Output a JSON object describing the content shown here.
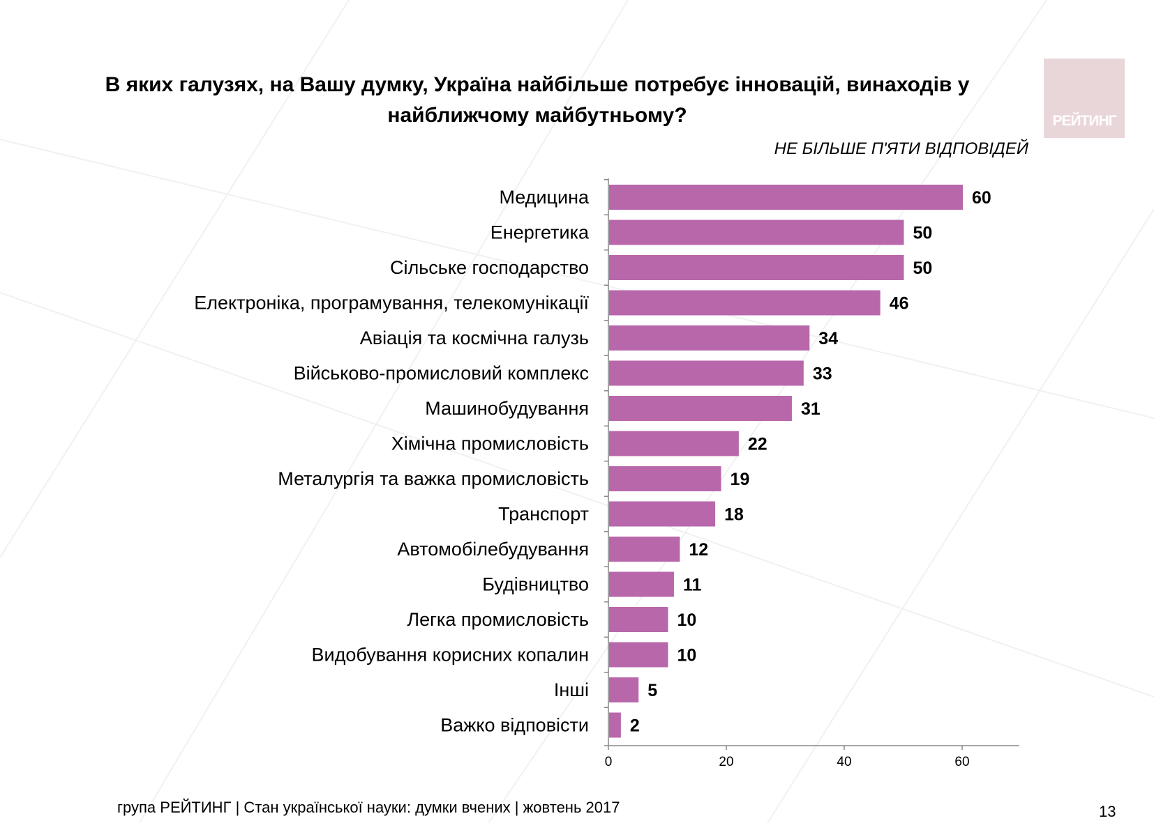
{
  "title_line1": "В яких галузях, на Вашу думку, Україна найбільше потребує інновацій, винаходів у",
  "title_line2": "найближчому майбутньому?",
  "subtitle": "НЕ БІЛЬШЕ П'ЯТИ ВІДПОВІДЕЙ",
  "logo_text": "РЕЙТИНГ",
  "footer": "група РЕЙТИНГ | Стан української науки: думки вчених | жовтень 2017",
  "page_number": "13",
  "colors": {
    "bar": "#b967ab",
    "logo": "#e9d6d9",
    "axis": "#888888"
  },
  "chart_data": {
    "type": "bar",
    "orientation": "horizontal",
    "categories": [
      "Медицина",
      "Енергетика",
      "Сільське господарство",
      "Електроніка, програмування, телекомунікації",
      "Авіація та космічна галузь",
      "Військово-промисловий комплекс",
      "Машинобудування",
      "Хімічна промисловість",
      "Металургія та важка промисловість",
      "Транспорт",
      "Автомобілебудування",
      "Будівництво",
      "Легка промисловість",
      "Видобування корисних копалин",
      "Інші",
      "Важко відповісти"
    ],
    "values": [
      60,
      50,
      50,
      46,
      34,
      33,
      31,
      22,
      19,
      18,
      12,
      11,
      10,
      10,
      5,
      2
    ],
    "xlim": [
      0,
      70
    ],
    "xticks": [
      0,
      20,
      40,
      60
    ],
    "xlabel": "",
    "ylabel": "",
    "grid": false,
    "legend": "none"
  }
}
